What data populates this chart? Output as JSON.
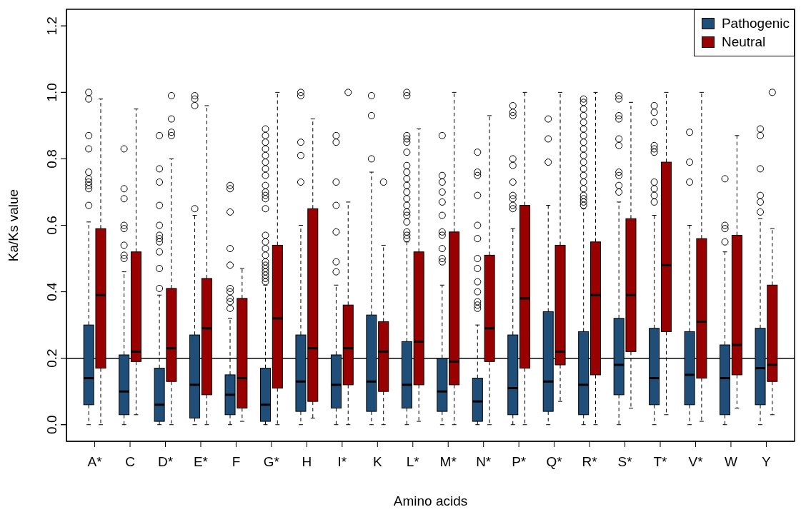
{
  "chart_data": {
    "type": "box",
    "xlabel": "Amino acids",
    "ylabel": "Ka/Ks value",
    "categories": [
      "A*",
      "C",
      "D*",
      "E*",
      "F",
      "G*",
      "H",
      "I*",
      "K",
      "L*",
      "M*",
      "N*",
      "P*",
      "Q*",
      "R*",
      "S*",
      "T*",
      "V*",
      "W",
      "Y"
    ],
    "ylim": [
      -0.05,
      1.25
    ],
    "yticks": [
      {
        "value": 0,
        "label": "0.0"
      },
      {
        "value": 0.2,
        "label": "0.2"
      },
      {
        "value": 0.4,
        "label": "0.4"
      },
      {
        "value": 0.6,
        "label": "0.6"
      },
      {
        "value": 0.8,
        "label": "0.8"
      },
      {
        "value": 1,
        "label": "1.0"
      },
      {
        "value": 1.2,
        "label": "1.2"
      }
    ],
    "legend": "top right",
    "ref_lines": [
      {
        "axis": "y",
        "value": 0.2,
        "color": "#000000"
      }
    ],
    "series": [
      {
        "name": "Pathogenic",
        "color": "#1f4e79",
        "boxes": [
          {
            "low": 0,
            "q1": 0.06,
            "median": 0.14,
            "q3": 0.3,
            "high": 0.61,
            "outliers": [
              1.0,
              0.98,
              0.87,
              0.83,
              0.76,
              0.74,
              0.73,
              0.72,
              0.71,
              0.66
            ]
          },
          {
            "low": 0,
            "q1": 0.03,
            "median": 0.1,
            "q3": 0.21,
            "high": 0.46,
            "outliers": [
              0.83,
              0.71,
              0.68,
              0.6,
              0.59,
              0.54,
              0.51,
              0.5
            ]
          },
          {
            "low": 0,
            "q1": 0.01,
            "median": 0.06,
            "q3": 0.17,
            "high": 0.39,
            "outliers": [
              0.87,
              0.77,
              0.73,
              0.66,
              0.6,
              0.57,
              0.56,
              0.55,
              0.52,
              0.47,
              0.41
            ]
          },
          {
            "low": 0,
            "q1": 0.02,
            "median": 0.12,
            "q3": 0.27,
            "high": 0.63,
            "outliers": [
              0.99,
              0.98,
              0.96,
              0.65
            ]
          },
          {
            "low": 0,
            "q1": 0.03,
            "median": 0.09,
            "q3": 0.15,
            "high": 0.32,
            "outliers": [
              0.72,
              0.71,
              0.64,
              0.53,
              0.48,
              0.41,
              0.4,
              0.38,
              0.37,
              0.35
            ]
          },
          {
            "low": 0,
            "q1": 0.01,
            "median": 0.06,
            "q3": 0.17,
            "high": 0.42,
            "outliers": [
              0.89,
              0.87,
              0.85,
              0.83,
              0.81,
              0.79,
              0.77,
              0.75,
              0.72,
              0.7,
              0.69,
              0.68,
              0.65,
              0.57,
              0.55,
              0.53,
              0.51,
              0.49,
              0.48,
              0.47,
              0.46,
              0.45,
              0.44,
              0.43
            ]
          },
          {
            "low": 0,
            "q1": 0.04,
            "median": 0.13,
            "q3": 0.27,
            "high": 0.6,
            "outliers": [
              1.0,
              0.99,
              0.85,
              0.81,
              0.73
            ]
          },
          {
            "low": 0,
            "q1": 0.05,
            "median": 0.12,
            "q3": 0.21,
            "high": 0.42,
            "outliers": [
              0.87,
              0.85,
              0.73,
              0.66,
              0.58,
              0.49,
              0.46
            ]
          },
          {
            "low": 0,
            "q1": 0.04,
            "median": 0.13,
            "q3": 0.33,
            "high": 0.76,
            "outliers": [
              0.99,
              0.93,
              0.8
            ]
          },
          {
            "low": 0,
            "q1": 0.05,
            "median": 0.12,
            "q3": 0.25,
            "high": 0.55,
            "outliers": [
              1.0,
              0.99,
              0.87,
              0.86,
              0.85,
              0.82,
              0.78,
              0.76,
              0.74,
              0.72,
              0.7,
              0.68,
              0.66,
              0.64,
              0.63,
              0.61,
              0.58,
              0.57,
              0.56
            ]
          },
          {
            "low": 0,
            "q1": 0.04,
            "median": 0.1,
            "q3": 0.2,
            "high": 0.42,
            "outliers": [
              0.87,
              0.75,
              0.73,
              0.7,
              0.67,
              0.63,
              0.58,
              0.57,
              0.53,
              0.5,
              0.49
            ]
          },
          {
            "low": 0,
            "q1": 0.01,
            "median": 0.07,
            "q3": 0.14,
            "high": 0.3,
            "outliers": [
              0.82,
              0.76,
              0.75,
              0.69,
              0.6,
              0.56,
              0.5,
              0.47,
              0.43,
              0.4,
              0.37,
              0.36,
              0.35
            ]
          },
          {
            "low": 0,
            "q1": 0.03,
            "median": 0.11,
            "q3": 0.27,
            "high": 0.59,
            "outliers": [
              0.96,
              0.94,
              0.93,
              0.8,
              0.78,
              0.73,
              0.69,
              0.68,
              0.66,
              0.65
            ]
          },
          {
            "low": 0,
            "q1": 0.04,
            "median": 0.13,
            "q3": 0.34,
            "high": 0.66,
            "outliers": [
              0.92,
              0.86,
              0.79
            ]
          },
          {
            "low": 0,
            "q1": 0.03,
            "median": 0.12,
            "q3": 0.28,
            "high": 0.65,
            "outliers": [
              0.98,
              0.97,
              0.95,
              0.93,
              0.91,
              0.89,
              0.87,
              0.85,
              0.83,
              0.81,
              0.79,
              0.77,
              0.75,
              0.73,
              0.71,
              0.69,
              0.68,
              0.67,
              0.66
            ]
          },
          {
            "low": 0,
            "q1": 0.09,
            "median": 0.18,
            "q3": 0.32,
            "high": 0.67,
            "outliers": [
              0.99,
              0.98,
              0.93,
              0.92,
              0.86,
              0.84,
              0.76,
              0.75,
              0.72,
              0.7
            ]
          },
          {
            "low": 0,
            "q1": 0.06,
            "median": 0.14,
            "q3": 0.29,
            "high": 0.63,
            "outliers": [
              0.96,
              0.94,
              0.91,
              0.84,
              0.83,
              0.82,
              0.73,
              0.71,
              0.69,
              0.67
            ]
          },
          {
            "low": 0,
            "q1": 0.06,
            "median": 0.15,
            "q3": 0.28,
            "high": 0.6,
            "outliers": [
              0.88,
              0.79,
              0.73
            ]
          },
          {
            "low": 0,
            "q1": 0.03,
            "median": 0.14,
            "q3": 0.24,
            "high": 0.52,
            "outliers": [
              0.74,
              0.6,
              0.59,
              0.55
            ]
          },
          {
            "low": 0,
            "q1": 0.06,
            "median": 0.17,
            "q3": 0.29,
            "high": 0.62,
            "outliers": [
              0.89,
              0.87,
              0.77,
              0.69,
              0.67,
              0.64
            ]
          }
        ]
      },
      {
        "name": "Neutral",
        "color": "#990000",
        "boxes": [
          {
            "low": 0,
            "q1": 0.17,
            "median": 0.39,
            "q3": 0.59,
            "high": 0.98
          },
          {
            "low": 0.03,
            "q1": 0.19,
            "median": 0.22,
            "q3": 0.52,
            "high": 0.95
          },
          {
            "low": 0,
            "q1": 0.13,
            "median": 0.23,
            "q3": 0.41,
            "high": 0.8,
            "outliers": [
              0.99,
              0.92,
              0.88,
              0.87
            ]
          },
          {
            "low": 0,
            "q1": 0.09,
            "median": 0.29,
            "q3": 0.44,
            "high": 0.96
          },
          {
            "low": 0.01,
            "q1": 0.05,
            "median": 0.14,
            "q3": 0.38,
            "high": 0.47
          },
          {
            "low": 0,
            "q1": 0.11,
            "median": 0.32,
            "q3": 0.54,
            "high": 1.0
          },
          {
            "low": 0.02,
            "q1": 0.07,
            "median": 0.23,
            "q3": 0.65,
            "high": 0.92
          },
          {
            "low": 0,
            "q1": 0.12,
            "median": 0.23,
            "q3": 0.36,
            "high": 0.67,
            "outliers": [
              1.0
            ]
          },
          {
            "low": 0,
            "q1": 0.1,
            "median": 0.22,
            "q3": 0.31,
            "high": 0.54,
            "outliers": [
              0.73
            ]
          },
          {
            "low": 0.01,
            "q1": 0.12,
            "median": 0.25,
            "q3": 0.52,
            "high": 0.89
          },
          {
            "low": 0,
            "q1": 0.12,
            "median": 0.19,
            "q3": 0.58,
            "high": 1.0
          },
          {
            "low": 0,
            "q1": 0.19,
            "median": 0.29,
            "q3": 0.51,
            "high": 0.93
          },
          {
            "low": 0,
            "q1": 0.17,
            "median": 0.38,
            "q3": 0.66,
            "high": 1.0
          },
          {
            "low": 0.07,
            "q1": 0.18,
            "median": 0.22,
            "q3": 0.54,
            "high": 1.0
          },
          {
            "low": 0,
            "q1": 0.15,
            "median": 0.39,
            "q3": 0.55,
            "high": 1.0
          },
          {
            "low": 0.05,
            "q1": 0.22,
            "median": 0.39,
            "q3": 0.62,
            "high": 0.97
          },
          {
            "low": 0.03,
            "q1": 0.28,
            "median": 0.48,
            "q3": 0.79,
            "high": 1.0
          },
          {
            "low": 0.01,
            "q1": 0.14,
            "median": 0.31,
            "q3": 0.56,
            "high": 1.0
          },
          {
            "low": 0.05,
            "q1": 0.15,
            "median": 0.24,
            "q3": 0.57,
            "high": 0.87
          },
          {
            "low": 0.03,
            "q1": 0.13,
            "median": 0.18,
            "q3": 0.42,
            "high": 0.59,
            "outliers": [
              1.0
            ]
          }
        ]
      }
    ]
  }
}
